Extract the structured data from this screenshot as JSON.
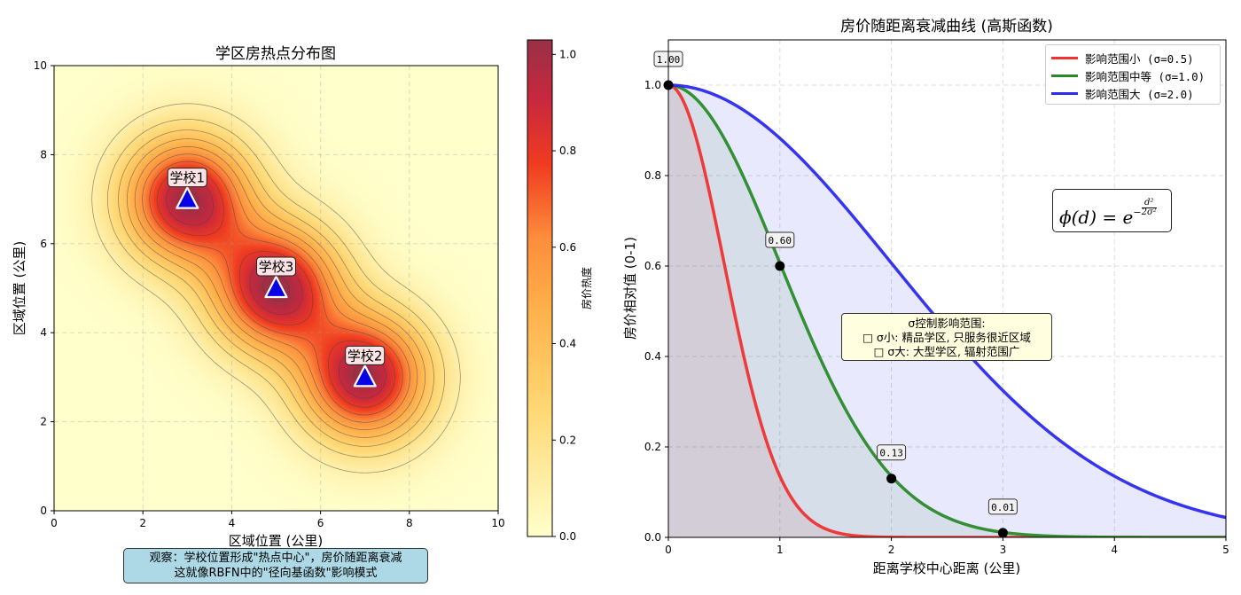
{
  "chart_data": [
    {
      "type": "heatmap",
      "title": "学区房热点分布图",
      "xlabel": "区域位置 (公里)",
      "ylabel": "区域位置 (公里)",
      "xlim": [
        0,
        10
      ],
      "ylim": [
        0,
        10
      ],
      "xticks": [
        "0",
        "2",
        "4",
        "6",
        "8",
        "10"
      ],
      "yticks": [
        "0",
        "2",
        "4",
        "6",
        "8",
        "10"
      ],
      "grid": true,
      "sigma": 1.0,
      "schools": [
        {
          "label": "学校1",
          "x": 3,
          "y": 7
        },
        {
          "label": "学校2",
          "x": 7,
          "y": 3
        },
        {
          "label": "学校3",
          "x": 5,
          "y": 5
        }
      ],
      "colorbar": {
        "label": "房价热度",
        "range": [
          0,
          1.03
        ],
        "ticks": [
          "0.0",
          "0.2",
          "0.4",
          "0.6",
          "0.8",
          "1.0"
        ]
      },
      "contour_levels": [
        0.1,
        0.2,
        0.3,
        0.4,
        0.5,
        0.6,
        0.7,
        0.8,
        0.9,
        1.0
      ]
    },
    {
      "type": "line",
      "title": "房价随距离衰减曲线 (高斯函数)",
      "xlabel": "距离学校中心距离 (公里)",
      "ylabel": "房价相对值 (0-1)",
      "xlim": [
        0,
        5
      ],
      "ylim": [
        0,
        1.1
      ],
      "xticks": [
        "0",
        "1",
        "2",
        "3",
        "4",
        "5"
      ],
      "yticks": [
        "0.0",
        "0.2",
        "0.4",
        "0.6",
        "0.8",
        "1.0"
      ],
      "grid": true,
      "legend_position": "upper-right",
      "series": [
        {
          "name": "影响范围小 (σ=0.5)",
          "sigma": 0.5,
          "color": "#f03030"
        },
        {
          "name": "影响范围中等 (σ=1.0)",
          "sigma": 1.0,
          "color": "#2a8a2a"
        },
        {
          "name": "影响范围大 (σ=2.0)",
          "sigma": 2.0,
          "color": "#2a2af0"
        }
      ],
      "marked_points": [
        {
          "x": 0,
          "y": 1.0,
          "label": "1.00"
        },
        {
          "x": 1,
          "y": 0.6,
          "label": "0.60"
        },
        {
          "x": 2,
          "y": 0.13,
          "label": "0.13"
        },
        {
          "x": 3,
          "y": 0.01,
          "label": "0.01"
        }
      ]
    }
  ],
  "annotations": {
    "observation_line1": "观察：学校位置形成\"热点中心\"，房价随距离衰减",
    "observation_line2": "这就像RBFN中的\"径向基函数\"影响模式",
    "sigma_title": "σ控制影响范围:",
    "sigma_small": "□ σ小: 精品学区, 只服务很近区域",
    "sigma_large": "□ σ大: 大型学区, 辐射范围广",
    "formula_lhs": "ϕ(d) = e",
    "formula_num": "d²",
    "formula_den": "2σ²"
  }
}
